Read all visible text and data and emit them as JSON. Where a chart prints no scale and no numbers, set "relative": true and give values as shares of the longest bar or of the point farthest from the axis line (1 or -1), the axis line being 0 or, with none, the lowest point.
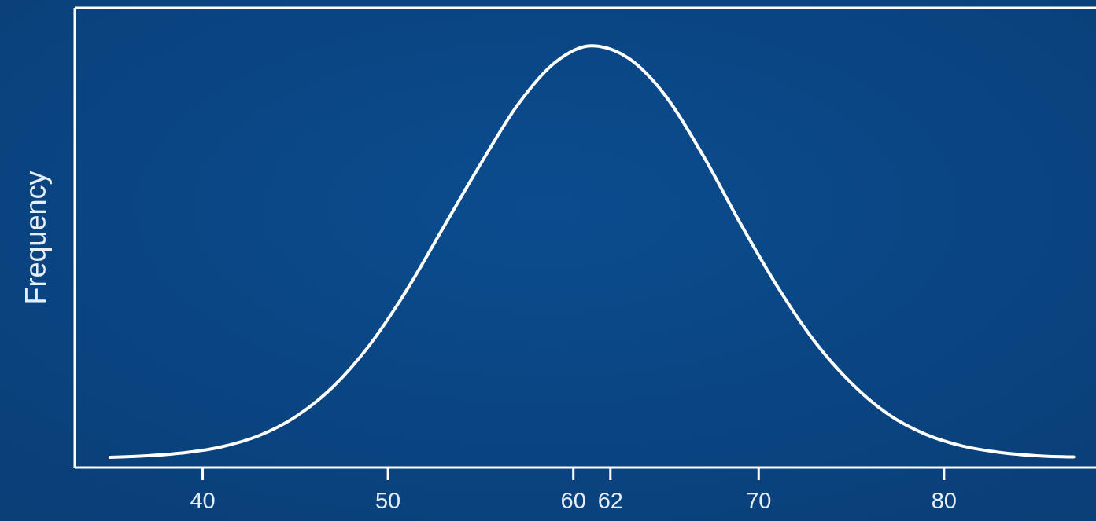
{
  "chart_data": {
    "type": "line",
    "ylabel": "Frequency",
    "relative": true,
    "xlim": [
      33.1,
      88.2
    ],
    "xticks": [
      40,
      50,
      60,
      62,
      70,
      80
    ],
    "series": [
      {
        "color": "#ffffff",
        "x": [
          35,
          37,
          39,
          41,
          43,
          45,
          47,
          49,
          51,
          53,
          55,
          57,
          59,
          61,
          63,
          65,
          67,
          69,
          71,
          73,
          75,
          77,
          79,
          81,
          83,
          85,
          87
        ],
        "values": [
          0.024,
          0.028,
          0.035,
          0.049,
          0.075,
          0.12,
          0.19,
          0.29,
          0.42,
          0.57,
          0.72,
          0.86,
          0.96,
          1.0,
          0.97,
          0.88,
          0.74,
          0.58,
          0.43,
          0.3,
          0.2,
          0.126,
          0.079,
          0.051,
          0.036,
          0.028,
          0.025
        ]
      }
    ]
  }
}
